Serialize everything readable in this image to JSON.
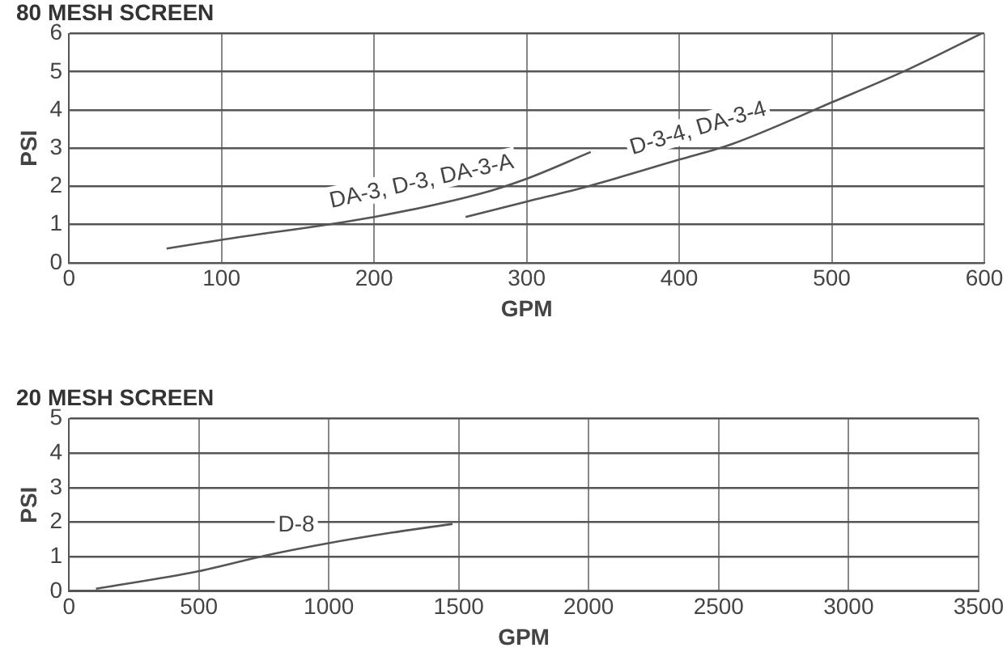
{
  "chart_data": [
    {
      "type": "line",
      "title": "80 MESH SCREEN",
      "xlabel": "GPM",
      "ylabel": "PSI",
      "xlim": [
        0,
        600
      ],
      "xticks": [
        0,
        100,
        200,
        300,
        400,
        500,
        600
      ],
      "ylim": [
        0,
        6
      ],
      "yticks": [
        0,
        1,
        2,
        3,
        4,
        5,
        6
      ],
      "grid": true,
      "legend": false,
      "marker": "none",
      "line_style": "solid",
      "series": [
        {
          "name": "DA-3, D-3, DA-3-A",
          "color": "#555555",
          "x": [
            64,
            100,
            200,
            269,
            300,
            342
          ],
          "values": [
            0.37,
            0.6,
            1.2,
            1.8,
            2.2,
            2.9
          ]
        },
        {
          "name": "D-3-4, DA-3-4",
          "color": "#555555",
          "x": [
            260,
            300,
            340,
            400,
            434,
            500,
            552,
            598
          ],
          "values": [
            1.2,
            1.6,
            2.0,
            2.7,
            3.1,
            4.2,
            5.1,
            6.0
          ]
        }
      ]
    },
    {
      "type": "line",
      "title": "20 MESH SCREEN",
      "xlabel": "GPM",
      "ylabel": "PSI",
      "xlim": [
        0,
        3500
      ],
      "xticks": [
        0,
        500,
        1000,
        1500,
        2000,
        2500,
        3000,
        3500
      ],
      "ylim": [
        0,
        5
      ],
      "yticks": [
        0,
        1,
        2,
        3,
        4,
        5
      ],
      "grid": true,
      "legend": false,
      "marker": "none",
      "line_style": "solid",
      "series": [
        {
          "name": "D-8",
          "color": "#555555",
          "x": [
            104,
            493,
            760,
            990,
            1245,
            1476
          ],
          "values": [
            0.07,
            0.57,
            1.04,
            1.38,
            1.7,
            1.95
          ]
        }
      ]
    }
  ]
}
